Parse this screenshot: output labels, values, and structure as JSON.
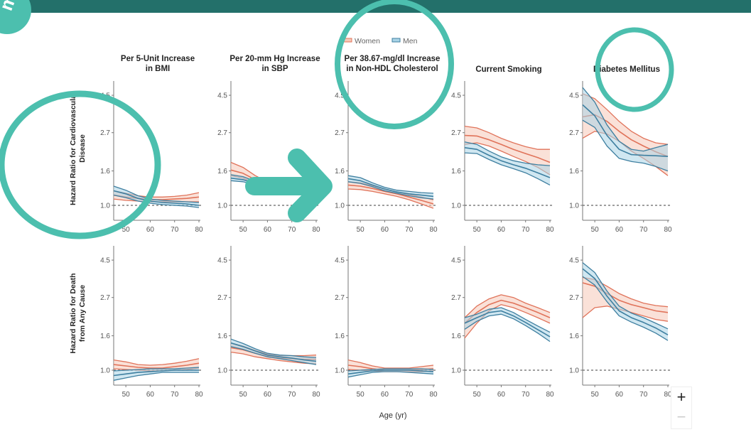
{
  "legend": [
    {
      "label": "Women",
      "color": "#e0735a",
      "fill": "#f6c8b8"
    },
    {
      "label": "Men",
      "color": "#3e7fa0",
      "fill": "#a9d3e6"
    }
  ],
  "overlay": {
    "bar_color": "#23706a",
    "annotation_color": "#4cbfae",
    "logo_text": "m"
  },
  "zoom_controls": {
    "plus": "+",
    "minus": "−"
  },
  "chart_data": {
    "type": "line",
    "xlabel": "Age (yr)",
    "x_ticks": [
      "50",
      "60",
      "70",
      "80"
    ],
    "xlim": [
      45,
      80
    ],
    "y_ticks": [
      "4.5",
      "2.7",
      "1.6",
      "1.0"
    ],
    "y_scale": "log",
    "reference_line": 1.0,
    "columns": [
      "Per 5-Unit Increase in BMI",
      "Per 20-mm Hg Increase in SBP",
      "Per 38.67-mg/dl Increase in Non-HDL Cholesterol",
      "Current Smoking",
      "Diabetes Mellitus"
    ],
    "column_titles": [
      [
        "Per 5-Unit Increase",
        "in BMI"
      ],
      [
        "Per 20-mm Hg Increase",
        "in SBP"
      ],
      [
        "Per 38.67-mg/dl Increase",
        "in Non-HDL Cholesterol"
      ],
      [
        "Current Smoking",
        ""
      ],
      [
        "Diabetes Mellitus",
        ""
      ]
    ],
    "rows": [
      [
        "Hazard Ratio for Cardiovascular",
        "Disease"
      ],
      [
        "Hazard Ratio for Death",
        "from Any Cause"
      ]
    ],
    "ages": [
      45,
      50,
      55,
      60,
      65,
      70,
      75,
      80
    ],
    "panels": [
      [
        {
          "women": {
            "mid": [
              1.15,
              1.12,
              1.1,
              1.08,
              1.08,
              1.09,
              1.1,
              1.12
            ],
            "lo": [
              1.09,
              1.07,
              1.06,
              1.05,
              1.05,
              1.05,
              1.05,
              1.05
            ],
            "hi": [
              1.22,
              1.18,
              1.14,
              1.12,
              1.12,
              1.13,
              1.15,
              1.19
            ]
          },
          "men": {
            "mid": [
              1.22,
              1.17,
              1.1,
              1.06,
              1.04,
              1.03,
              1.02,
              1.0
            ],
            "lo": [
              1.15,
              1.11,
              1.06,
              1.03,
              1.01,
              1.0,
              0.99,
              0.97
            ],
            "hi": [
              1.3,
              1.23,
              1.14,
              1.09,
              1.07,
              1.06,
              1.05,
              1.04
            ]
          }
        },
        {
          "women": {
            "mid": [
              1.62,
              1.55,
              1.42,
              1.32,
              1.26,
              1.22,
              1.2,
              1.2
            ],
            "lo": [
              1.5,
              1.45,
              1.35,
              1.27,
              1.22,
              1.18,
              1.16,
              1.15
            ],
            "hi": [
              1.8,
              1.68,
              1.5,
              1.38,
              1.3,
              1.26,
              1.25,
              1.26
            ]
          },
          "men": {
            "mid": [
              1.45,
              1.42,
              1.35,
              1.29,
              1.25,
              1.22,
              1.2,
              1.19
            ],
            "lo": [
              1.4,
              1.38,
              1.32,
              1.26,
              1.22,
              1.19,
              1.17,
              1.15
            ],
            "hi": [
              1.52,
              1.48,
              1.39,
              1.32,
              1.28,
              1.25,
              1.23,
              1.23
            ]
          }
        },
        {
          "women": {
            "mid": [
              1.32,
              1.3,
              1.26,
              1.21,
              1.17,
              1.12,
              1.07,
              1.02
            ],
            "lo": [
              1.25,
              1.24,
              1.21,
              1.17,
              1.13,
              1.08,
              1.02,
              0.96
            ],
            "hi": [
              1.38,
              1.36,
              1.31,
              1.25,
              1.2,
              1.16,
              1.12,
              1.08
            ]
          },
          "men": {
            "mid": [
              1.44,
              1.4,
              1.32,
              1.25,
              1.2,
              1.17,
              1.15,
              1.13
            ],
            "lo": [
              1.38,
              1.35,
              1.29,
              1.22,
              1.18,
              1.14,
              1.11,
              1.09
            ],
            "hi": [
              1.5,
              1.46,
              1.36,
              1.28,
              1.23,
              1.21,
              1.19,
              1.18
            ]
          }
        },
        {
          "women": {
            "mid": [
              2.6,
              2.58,
              2.45,
              2.3,
              2.15,
              2.03,
              1.92,
              1.8
            ],
            "lo": [
              2.3,
              2.35,
              2.25,
              2.1,
              1.95,
              1.82,
              1.68,
              1.52
            ],
            "hi": [
              2.95,
              2.88,
              2.7,
              2.5,
              2.35,
              2.23,
              2.15,
              2.15
            ]
          },
          "men": {
            "mid": [
              2.2,
              2.15,
              1.98,
              1.84,
              1.74,
              1.66,
              1.56,
              1.46
            ],
            "lo": [
              2.05,
              2.03,
              1.87,
              1.74,
              1.65,
              1.56,
              1.44,
              1.32
            ],
            "hi": [
              2.38,
              2.3,
              2.1,
              1.94,
              1.84,
              1.78,
              1.74,
              1.72
            ]
          }
        },
        {
          "women": {
            "mid": [
              3.35,
              3.45,
              3.15,
              2.75,
              2.45,
              2.25,
              2.08,
              1.95
            ],
            "lo": [
              2.5,
              2.75,
              2.65,
              2.4,
              2.1,
              1.9,
              1.7,
              1.5
            ],
            "hi": [
              4.6,
              4.3,
              3.7,
              3.15,
              2.75,
              2.5,
              2.35,
              2.3
            ]
          },
          "men": {
            "mid": [
              3.95,
              3.4,
              2.6,
              2.15,
              2.0,
              1.98,
              1.97,
              1.95
            ],
            "lo": [
              3.2,
              2.9,
              2.25,
              1.9,
              1.82,
              1.78,
              1.7,
              1.6
            ],
            "hi": [
              5.0,
              4.1,
              3.0,
              2.4,
              2.15,
              2.1,
              2.2,
              2.3
            ]
          }
        }
      ],
      [
        {
          "women": {
            "mid": [
              1.08,
              1.06,
              1.04,
              1.03,
              1.03,
              1.05,
              1.07,
              1.1
            ],
            "lo": [
              1.02,
              1.01,
              1.0,
              0.99,
              0.99,
              1.0,
              1.01,
              1.03
            ],
            "hi": [
              1.15,
              1.12,
              1.08,
              1.07,
              1.08,
              1.1,
              1.13,
              1.17
            ]
          },
          "men": {
            "mid": [
              0.93,
              0.95,
              0.97,
              0.98,
              0.99,
              1.0,
              1.0,
              1.0
            ],
            "lo": [
              0.87,
              0.9,
              0.93,
              0.95,
              0.97,
              0.97,
              0.97,
              0.97
            ],
            "hi": [
              0.99,
              1.0,
              1.01,
              1.02,
              1.02,
              1.02,
              1.03,
              1.04
            ]
          }
        },
        {
          "women": {
            "mid": [
              1.36,
              1.32,
              1.26,
              1.21,
              1.18,
              1.17,
              1.16,
              1.16
            ],
            "lo": [
              1.28,
              1.25,
              1.2,
              1.17,
              1.14,
              1.12,
              1.1,
              1.09
            ],
            "hi": [
              1.45,
              1.39,
              1.31,
              1.25,
              1.22,
              1.22,
              1.22,
              1.23
            ]
          },
          "men": {
            "mid": [
              1.45,
              1.38,
              1.3,
              1.23,
              1.2,
              1.18,
              1.15,
              1.13
            ],
            "lo": [
              1.38,
              1.33,
              1.26,
              1.2,
              1.17,
              1.14,
              1.11,
              1.08
            ],
            "hi": [
              1.53,
              1.44,
              1.34,
              1.26,
              1.23,
              1.22,
              1.2,
              1.19
            ]
          }
        },
        {
          "women": {
            "mid": [
              1.07,
              1.05,
              1.02,
              1.0,
              1.0,
              1.0,
              1.01,
              1.02
            ],
            "lo": [
              1.01,
              1.0,
              0.99,
              0.98,
              0.98,
              0.98,
              0.98,
              0.99
            ],
            "hi": [
              1.15,
              1.11,
              1.06,
              1.03,
              1.03,
              1.03,
              1.05,
              1.07
            ]
          },
          "men": {
            "mid": [
              0.95,
              0.97,
              0.99,
              1.0,
              1.0,
              1.0,
              0.99,
              0.98
            ],
            "lo": [
              0.91,
              0.94,
              0.97,
              0.98,
              0.98,
              0.97,
              0.96,
              0.95
            ],
            "hi": [
              0.99,
              1.0,
              1.01,
              1.02,
              1.02,
              1.02,
              1.02,
              1.01
            ]
          }
        },
        {
          "women": {
            "mid": [
              1.9,
              2.2,
              2.45,
              2.6,
              2.5,
              2.35,
              2.2,
              2.05
            ],
            "lo": [
              1.55,
              1.9,
              2.25,
              2.45,
              2.35,
              2.2,
              2.05,
              1.9
            ],
            "hi": [
              2.05,
              2.4,
              2.65,
              2.8,
              2.7,
              2.5,
              2.35,
              2.2
            ]
          },
          "men": {
            "mid": [
              1.9,
              2.05,
              2.2,
              2.25,
              2.1,
              1.92,
              1.74,
              1.58
            ],
            "lo": [
              1.75,
              1.95,
              2.1,
              2.15,
              2.02,
              1.84,
              1.66,
              1.48
            ],
            "hi": [
              2.05,
              2.15,
              2.3,
              2.35,
              2.2,
              2.0,
              1.83,
              1.68
            ]
          }
        },
        {
          "women": {
            "mid": [
              3.3,
              3.15,
              2.85,
              2.6,
              2.45,
              2.35,
              2.25,
              2.2
            ],
            "lo": [
              2.05,
              2.35,
              2.4,
              2.3,
              2.2,
              2.1,
              2.0,
              1.95
            ],
            "hi": [
              3.55,
              3.45,
              3.15,
              2.85,
              2.65,
              2.5,
              2.42,
              2.38
            ]
          },
          "men": {
            "mid": [
              4.0,
              3.5,
              2.75,
              2.25,
              2.05,
              1.92,
              1.78,
              1.62
            ],
            "lo": [
              3.6,
              3.2,
              2.55,
              2.1,
              1.93,
              1.8,
              1.66,
              1.5
            ],
            "hi": [
              4.35,
              3.8,
              2.95,
              2.4,
              2.18,
              2.05,
              1.9,
              1.76
            ]
          }
        }
      ]
    ]
  }
}
